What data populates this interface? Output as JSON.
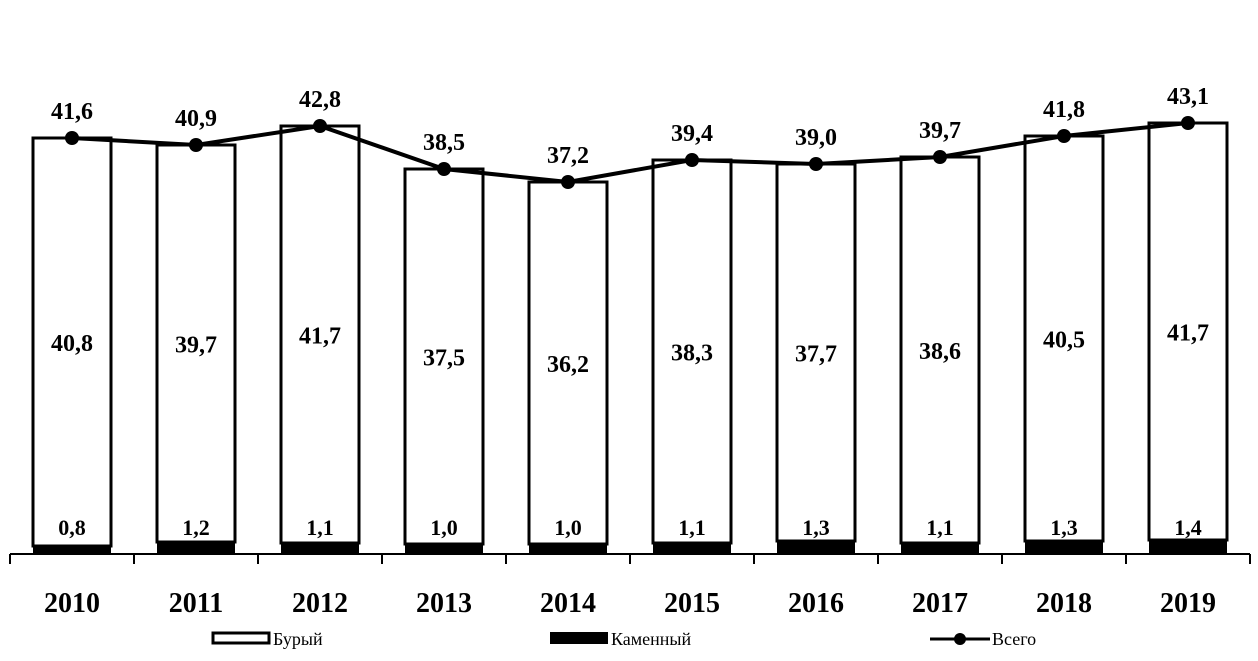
{
  "chart_data": {
    "type": "bar",
    "stacked": true,
    "categories": [
      "2010",
      "2011",
      "2012",
      "2013",
      "2014",
      "2015",
      "2016",
      "2017",
      "2018",
      "2019"
    ],
    "series": [
      {
        "name": "Бурый",
        "kind": "bar",
        "fill": "#ffffff",
        "values": [
          40.8,
          39.7,
          41.7,
          37.5,
          36.2,
          38.3,
          37.7,
          38.6,
          40.5,
          41.7
        ],
        "labels": [
          "40,8",
          "39,7",
          "41,7",
          "37,5",
          "36,2",
          "38,3",
          "37,7",
          "38,6",
          "40,5",
          "41,7"
        ]
      },
      {
        "name": "Каменный",
        "kind": "bar",
        "fill": "#000000",
        "values": [
          0.8,
          1.2,
          1.1,
          1.0,
          1.0,
          1.1,
          1.3,
          1.1,
          1.3,
          1.4
        ],
        "labels": [
          "0,8",
          "1,2",
          "1,1",
          "1,0",
          "1,0",
          "1,1",
          "1,3",
          "1,1",
          "1,3",
          "1,4"
        ]
      },
      {
        "name": "Всего",
        "kind": "line",
        "color": "#000000",
        "values": [
          41.6,
          40.9,
          42.8,
          38.5,
          37.2,
          39.4,
          39.0,
          39.7,
          41.8,
          43.1
        ],
        "labels": [
          "41,6",
          "40,9",
          "42,8",
          "38,5",
          "37,2",
          "39,4",
          "39,0",
          "39,7",
          "41,8",
          "43,1"
        ]
      }
    ],
    "title": "",
    "xlabel": "",
    "ylabel": "",
    "ylim": [
      0,
      48
    ],
    "grid": false,
    "legend_position": "bottom"
  }
}
